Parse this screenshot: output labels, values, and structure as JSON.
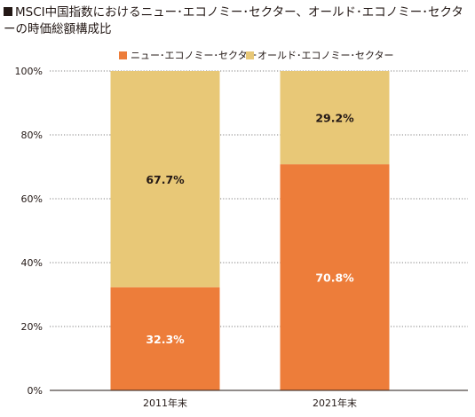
{
  "chart_data": {
    "type": "bar",
    "stacked": true,
    "title": "MSCI中国指数におけるニュー･エコノミー･セクター、オールド･エコノミー･セクターの時価総額構成比",
    "categories": [
      "2011年末",
      "2021年末"
    ],
    "series": [
      {
        "name": "ニュー･エコノミー･セクター",
        "values": [
          32.3,
          70.8
        ],
        "labels": [
          "32.3%",
          "70.8%"
        ],
        "color": "#ed7d3a",
        "label_color": "#ffffff"
      },
      {
        "name": "オールド･エコノミー･セクター",
        "values": [
          67.7,
          29.2
        ],
        "labels": [
          "67.7%",
          "29.2%"
        ],
        "color": "#e8c877",
        "label_color": "#231815"
      }
    ],
    "y_ticks": [
      "0%",
      "20%",
      "40%",
      "60%",
      "80%",
      "100%"
    ],
    "ylim": [
      0,
      100
    ],
    "grid": true,
    "legend_position": "top"
  }
}
